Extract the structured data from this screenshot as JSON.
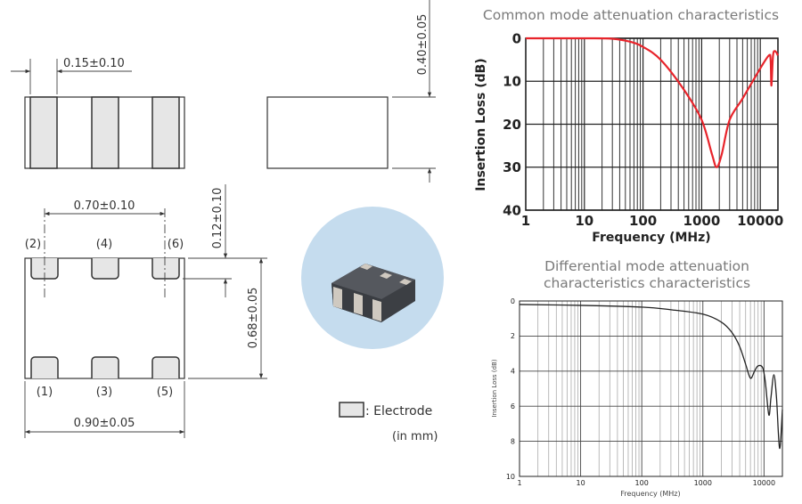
{
  "diagram": {
    "dimensions": {
      "electrode_width": "0.15±0.10",
      "thickness": "0.40±0.05",
      "pitch": "0.70±0.10",
      "pad_length": "0.12±0.10",
      "width": "0.68±0.05",
      "length": "0.90±0.05"
    },
    "pins_top": [
      "(2)",
      "(4)",
      "(6)"
    ],
    "pins_bottom": [
      "(1)",
      "(3)",
      "(5)"
    ],
    "legend_label": ": Electrode",
    "unit_note": "(in mm)",
    "colors": {
      "electrode": "#e6e6e6",
      "photo_background": "#c5dcee",
      "chip_body": "#4a4d52"
    }
  },
  "chart_data": [
    {
      "type": "line",
      "title": "Common mode attenuation characteristics",
      "xlabel": "Frequency (MHz)",
      "ylabel": "Insertion Loss (dB)",
      "xscale": "log",
      "xlim": [
        1,
        20000
      ],
      "ylim": [
        0,
        40
      ],
      "y_inverted": true,
      "grid": true,
      "xticks": [
        "1",
        "10",
        "100",
        "1000",
        "10000"
      ],
      "yticks": [
        "0",
        "10",
        "20",
        "30",
        "40"
      ],
      "series_color": "#e8242b",
      "x": [
        1,
        10,
        30,
        60,
        100,
        200,
        500,
        1000,
        1500,
        1800,
        2200,
        3000,
        5000,
        10000,
        14000,
        15000,
        15500,
        16500,
        18000,
        20000
      ],
      "y": [
        0,
        0,
        0.1,
        0.8,
        2,
        5,
        12,
        19,
        27,
        30,
        27,
        19,
        14,
        7,
        4,
        5,
        11,
        4,
        3,
        4
      ]
    },
    {
      "type": "line",
      "title": "Differential mode attenuation characteristics characteristics",
      "title_lines": [
        "Differential mode attenuation",
        "characteristics characteristics"
      ],
      "xlabel": "Frequency (MHz)",
      "ylabel": "Insertion Loss (dB)",
      "xscale": "log",
      "xlim": [
        1,
        20000
      ],
      "ylim": [
        0,
        10
      ],
      "y_inverted": true,
      "grid": true,
      "xticks": [
        "1",
        "10",
        "100",
        "1000",
        "10000"
      ],
      "yticks": [
        "0",
        "2",
        "4",
        "6",
        "8",
        "10"
      ],
      "series_color": "#222222",
      "x": [
        1,
        10,
        100,
        300,
        1000,
        2000,
        3000,
        4000,
        5000,
        6000,
        7000,
        8000,
        9500,
        10500,
        12000,
        13000,
        14500,
        16000,
        18000,
        20000
      ],
      "y": [
        0.2,
        0.25,
        0.35,
        0.5,
        0.75,
        1.2,
        1.8,
        2.6,
        3.6,
        4.4,
        4.0,
        3.7,
        3.8,
        4.6,
        6.5,
        5.5,
        4.2,
        5.5,
        8.4,
        6.2
      ]
    }
  ]
}
